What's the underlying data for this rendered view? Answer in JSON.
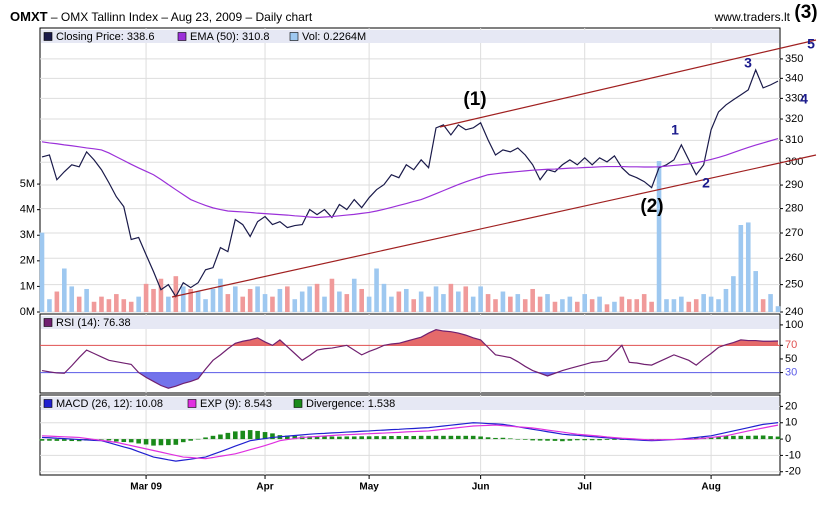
{
  "header": {
    "symbol": "OMXT",
    "title": " – OMX Tallinn Index – Aug 23, 2009 – Daily chart",
    "site": "www.traders.lt"
  },
  "chart_data": [
    {
      "type": "line",
      "annotations": [
        "(1)",
        "(2)",
        "(3)",
        "1",
        "2",
        "3",
        "4",
        "5"
      ],
      "ylim": [
        0,
        11.1
      ],
      "yticks": [
        {
          "value": 0,
          "label": "0M"
        },
        {
          "value": 1,
          "label": "1M"
        },
        {
          "value": 2,
          "label": "2M"
        },
        {
          "value": 3,
          "label": "3M"
        },
        {
          "value": 4,
          "label": "4M"
        },
        {
          "value": 5,
          "label": "5M"
        }
      ],
      "y2lim": [
        240,
        366.5
      ],
      "y2log": true,
      "y2ticks": [
        240,
        250,
        260,
        270,
        280,
        290,
        300,
        310,
        320,
        330,
        340,
        350
      ],
      "grid": true,
      "series": [
        {
          "label": "Closing Price: 338.6",
          "axis": "y2",
          "color": "#1a1a4a",
          "values": [
            302.4,
            303.3,
            292.3,
            295.8,
            298.9,
            298.0,
            304.7,
            301.1,
            296.7,
            291.0,
            285.0,
            280.8,
            267.4,
            268.2,
            261.4,
            254.9,
            248.1,
            250.0,
            245.6,
            250.7,
            248.9,
            250.7,
            255.6,
            256.4,
            264.2,
            262.6,
            275.5,
            273.4,
            268.6,
            274.6,
            276.7,
            273.4,
            274.6,
            272.2,
            273.0,
            273.4,
            279.6,
            277.5,
            279.6,
            276.3,
            281.7,
            279.6,
            283.8,
            280.4,
            284.6,
            288.0,
            290.2,
            294.5,
            293.2,
            298.9,
            296.7,
            301.1,
            297.6,
            315.8,
            317.2,
            312.5,
            317.2,
            314.9,
            315.8,
            318.2,
            310.2,
            303.3,
            305.6,
            304.7,
            306.5,
            303.3,
            298.9,
            292.3,
            296.7,
            295.8,
            298.9,
            301.1,
            298.9,
            302.0,
            298.9,
            302.0,
            300.2,
            302.9,
            297.6,
            294.5,
            293.2,
            291.5,
            288.9,
            297.6,
            298.9,
            301.1,
            307.9,
            301.1,
            294.5,
            298.9,
            314.9,
            323.4,
            326.8,
            329.3,
            331.7,
            334.2,
            344.3,
            335.2,
            336.7,
            338.6
          ]
        },
        {
          "label": "EMA (50): 310.8",
          "axis": "y2",
          "color": "#9b30d9",
          "values": [
            309.3,
            308.8,
            308.4,
            307.9,
            307.5,
            307.0,
            306.5,
            306.1,
            305.6,
            304.2,
            302.5,
            300.8,
            299.1,
            297.5,
            296.0,
            294.5,
            292.4,
            290.2,
            288.0,
            285.9,
            283.8,
            282.5,
            281.3,
            280.3,
            279.6,
            279.0,
            278.8,
            278.6,
            278.4,
            278.1,
            277.9,
            277.7,
            277.5,
            277.3,
            277.0,
            276.8,
            276.5,
            276.3,
            276.5,
            276.7,
            277.0,
            277.3,
            277.6,
            278.0,
            278.4,
            279.0,
            279.7,
            280.5,
            281.3,
            282.1,
            283.0,
            283.8,
            285.0,
            286.3,
            287.6,
            288.9,
            290.2,
            291.4,
            292.5,
            293.5,
            294.5,
            294.9,
            295.3,
            295.6,
            295.9,
            296.2,
            296.5,
            296.7,
            296.9,
            297.0,
            297.2,
            297.4,
            297.5,
            297.7,
            297.8,
            298.0,
            298.1,
            298.1,
            298.1,
            298.0,
            298.0,
            297.9,
            297.9,
            298.0,
            298.3,
            298.6,
            298.9,
            299.3,
            299.8,
            300.5,
            301.3,
            302.2,
            303.2,
            304.4,
            305.6,
            306.7,
            307.8,
            308.8,
            309.8,
            310.8
          ]
        },
        {
          "label": "Vol: 0.2264M",
          "type": "bar",
          "axis": "y",
          "color": "#9ec8f0",
          "up_color": "#9ec8f0",
          "down_color": "#f09a9a",
          "values": [
            3.1,
            0.5,
            0.8,
            1.7,
            1.0,
            0.6,
            0.9,
            0.4,
            0.6,
            0.5,
            0.7,
            0.5,
            0.4,
            0.6,
            1.1,
            0.9,
            1.3,
            0.6,
            1.4,
            1.0,
            0.9,
            0.8,
            0.5,
            0.9,
            1.3,
            0.7,
            1.0,
            0.6,
            0.9,
            1.0,
            0.7,
            0.6,
            0.9,
            1.0,
            0.5,
            0.8,
            1.0,
            1.1,
            0.6,
            1.3,
            0.8,
            0.7,
            1.3,
            0.9,
            0.6,
            1.7,
            1.1,
            0.6,
            0.8,
            0.9,
            0.5,
            0.8,
            0.6,
            1.0,
            0.7,
            1.1,
            0.8,
            1.0,
            0.6,
            1.0,
            0.7,
            0.5,
            0.8,
            0.6,
            0.7,
            0.5,
            0.9,
            0.6,
            0.7,
            0.4,
            0.5,
            0.6,
            0.4,
            0.7,
            0.5,
            0.6,
            0.3,
            0.4,
            0.6,
            0.5,
            0.5,
            0.7,
            0.4,
            5.9,
            0.5,
            0.5,
            0.6,
            0.4,
            0.5,
            0.7,
            0.6,
            0.5,
            0.9,
            1.4,
            3.4,
            3.5,
            1.6,
            0.5,
            0.7,
            0.2264
          ]
        }
      ]
    },
    {
      "type": "line",
      "ylim": [
        0,
        116
      ],
      "yticks": [
        30,
        50,
        70,
        100
      ],
      "yaxis": "right",
      "levels": [
        {
          "value": 70,
          "color": "#e05050",
          "side": "above"
        },
        {
          "value": 30,
          "color": "#5a5ae8",
          "side": "below"
        }
      ],
      "series": [
        {
          "label": "RSI (14): 76.38",
          "color": "#702070",
          "values": [
            33,
            31,
            29.5,
            29,
            40,
            52,
            63,
            58,
            53,
            48,
            46,
            44,
            42,
            30,
            23,
            17,
            11,
            7,
            10,
            14,
            17,
            21,
            35,
            48,
            56,
            65,
            73,
            76,
            78,
            81,
            75,
            70,
            78,
            68,
            58,
            48,
            55,
            63,
            65,
            66,
            68,
            70,
            63,
            56,
            61,
            65,
            70,
            72,
            73,
            76,
            79,
            82,
            88,
            93,
            91,
            90,
            88,
            85,
            81,
            78,
            67,
            56,
            54,
            52,
            46,
            39,
            33,
            29,
            25,
            29,
            33,
            36,
            39,
            42,
            45,
            46,
            48,
            59,
            70,
            45,
            44,
            42,
            41,
            46,
            51,
            56,
            52,
            48,
            41,
            50,
            58,
            67,
            71,
            74,
            78,
            77,
            77,
            76,
            76,
            76.38
          ]
        }
      ]
    },
    {
      "type": "line",
      "ylim": [
        -22,
        27
      ],
      "yticks": [
        -20,
        -10,
        0,
        10,
        20
      ],
      "yaxis": "right",
      "grid": true,
      "categories": [
        null,
        null,
        null,
        null,
        null,
        null,
        null,
        null,
        null,
        null,
        null,
        null,
        null,
        null,
        "Mar 09",
        null,
        null,
        null,
        null,
        null,
        null,
        null,
        null,
        null,
        null,
        null,
        null,
        null,
        null,
        null,
        "Apr",
        null,
        null,
        null,
        null,
        null,
        null,
        null,
        null,
        null,
        null,
        null,
        null,
        null,
        "May",
        null,
        null,
        null,
        null,
        null,
        null,
        null,
        null,
        null,
        null,
        null,
        null,
        null,
        null,
        "Jun",
        null,
        null,
        null,
        null,
        null,
        null,
        null,
        null,
        null,
        null,
        null,
        null,
        null,
        "Jul",
        null,
        null,
        null,
        null,
        null,
        null,
        null,
        null,
        null,
        null,
        null,
        null,
        null,
        null,
        null,
        null,
        "Aug",
        null,
        null,
        null,
        null,
        null,
        null,
        null,
        null,
        null
      ],
      "series": [
        {
          "label": "MACD (26, 12): 10.08",
          "color": "#2020d0",
          "values": [
            1,
            0.8,
            0.5,
            0.3,
            0,
            -0.3,
            -0.5,
            -0.8,
            -1,
            -2.2,
            -3.5,
            -4.8,
            -6,
            -7.7,
            -9.3,
            -11,
            -11.8,
            -12.7,
            -13.5,
            -12.9,
            -12.3,
            -11.6,
            -11,
            -9.3,
            -7.7,
            -6,
            -4.3,
            -2.7,
            -1,
            -0.3,
            0.3,
            1,
            1.4,
            1.8,
            2.2,
            2.6,
            3,
            3.3,
            3.5,
            3.8,
            4,
            4.3,
            4.5,
            4.8,
            5,
            5.3,
            5.5,
            5.8,
            6,
            6.3,
            6.5,
            6.8,
            7,
            7.5,
            8,
            8.5,
            9,
            9.5,
            10,
            9.8,
            9.5,
            9.3,
            9,
            8.3,
            7.5,
            6.8,
            6,
            5.3,
            4.5,
            3.8,
            3,
            2.6,
            2.3,
            1.9,
            1.5,
            1.1,
            0.8,
            0.4,
            0,
            -0.3,
            -0.5,
            -0.8,
            -1,
            -0.8,
            -0.5,
            -0.3,
            0,
            0.5,
            1,
            1.5,
            2,
            3,
            4,
            5,
            6,
            7,
            8,
            9,
            9.5,
            10.08
          ]
        },
        {
          "label": "EXP (9): 8.543",
          "color": "#e030e0",
          "values": [
            2,
            1.8,
            1.6,
            1.4,
            1.2,
            1,
            0.4,
            -0.2,
            -0.8,
            -1.4,
            -2,
            -3,
            -4,
            -5,
            -6,
            -7,
            -8,
            -9,
            -10,
            -11,
            -11.3,
            -11.7,
            -12,
            -11.3,
            -10.5,
            -9.8,
            -9,
            -7.8,
            -6.5,
            -5.3,
            -4,
            -2.5,
            -1,
            -0.3,
            0.3,
            1,
            1.3,
            1.6,
            1.9,
            2.2,
            2.5,
            2.7,
            2.9,
            3.1,
            3.3,
            3.5,
            3.7,
            3.9,
            4.1,
            4.4,
            4.6,
            4.8,
            5,
            5.5,
            6,
            6.5,
            7,
            7.5,
            8,
            8.2,
            8.4,
            8.6,
            8.2,
            7.9,
            7.5,
            7.2,
            6.8,
            6.2,
            5.5,
            4.9,
            4.3,
            3.6,
            3,
            2.6,
            2.2,
            1.8,
            1.3,
            0.9,
            0.5,
            0.3,
            0,
            -0.3,
            -0.5,
            -0.4,
            -0.3,
            -0.3,
            -0.2,
            -0.1,
            0,
            0.5,
            1,
            1.5,
            2,
            3,
            4,
            5,
            5.9,
            6.8,
            7.7,
            8.543
          ]
        },
        {
          "label": "Divergence: 1.538",
          "type": "bar",
          "color": "#1a8a1a",
          "values": [
            -1,
            -1,
            -1.1,
            -1.1,
            -1.2,
            -1.3,
            -0.9,
            -0.6,
            -0.2,
            -0.8,
            -1.5,
            -1.8,
            -2,
            -2.7,
            -3.3,
            -4,
            -3.8,
            -3.7,
            -3.5,
            -1.9,
            -1,
            0.1,
            1,
            2,
            2.8,
            3.8,
            4.7,
            5.1,
            5.5,
            5,
            4.3,
            3.5,
            2.4,
            2.1,
            1.9,
            1.6,
            1.7,
            1.7,
            1.6,
            1.6,
            1.5,
            1.6,
            1.6,
            1.7,
            1.7,
            1.8,
            1.8,
            1.9,
            1.9,
            1.9,
            1.9,
            2,
            2,
            2,
            2,
            2,
            2,
            2,
            2,
            1.6,
            1.1,
            0.7,
            0.8,
            0.4,
            0,
            -0.4,
            -0.8,
            -0.9,
            -1,
            -1.1,
            -1.3,
            -1,
            -0.7,
            -0.7,
            -0.7,
            -0.7,
            -0.5,
            -0.5,
            -0.5,
            -0.6,
            -0.5,
            -0.5,
            -0.5,
            -0.4,
            -0.2,
            0,
            0.2,
            0.6,
            1,
            1,
            1,
            1.5,
            2,
            2,
            2,
            2,
            2.1,
            2.2,
            1.8,
            1.538
          ]
        }
      ]
    }
  ]
}
